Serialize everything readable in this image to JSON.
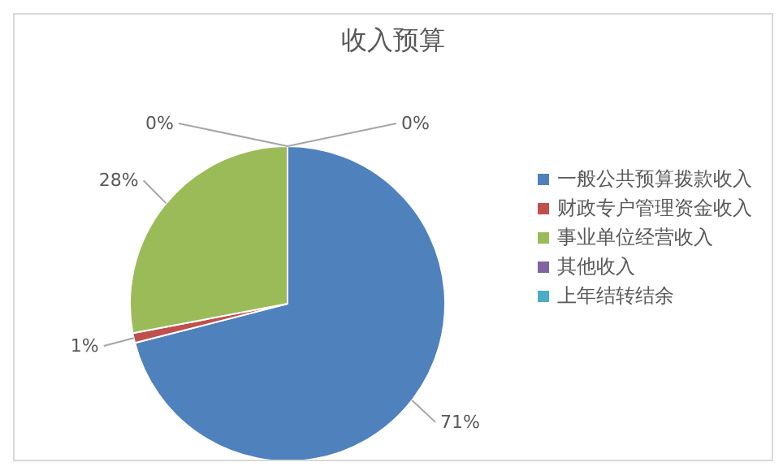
{
  "chart_data": {
    "type": "pie",
    "title": "收入预算",
    "categories": [
      "一般公共预算拨款收入",
      "财政专户管理资金收入",
      "事业单位经营收入",
      "其他收入",
      "上年结转结余"
    ],
    "values": [
      71,
      1,
      28,
      0,
      0
    ],
    "colors": [
      "#4f81bd",
      "#c0504d",
      "#9bbb59",
      "#8064a2",
      "#4bacc6"
    ],
    "value_labels": [
      "71%",
      "1%",
      "28%",
      "0%",
      "0%"
    ],
    "legend": "right"
  }
}
